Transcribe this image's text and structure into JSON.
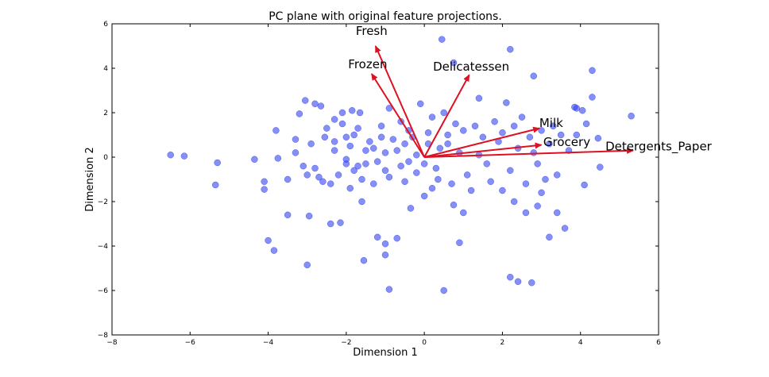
{
  "chart_data": {
    "type": "scatter",
    "title": "PC plane with original feature projections.",
    "xlabel": "Dimension 1",
    "ylabel": "Dimension 2",
    "xlim": [
      -8,
      6
    ],
    "ylim": [
      -8,
      6
    ],
    "xticks": [
      -8,
      -6,
      -4,
      -2,
      0,
      2,
      4,
      6
    ],
    "yticks": [
      -8,
      -6,
      -4,
      -2,
      0,
      2,
      4,
      6
    ],
    "x_tick_labels": [
      "−8",
      "−6",
      "−4",
      "−2",
      "0",
      "2",
      "4",
      "6"
    ],
    "y_tick_labels": [
      "−8",
      "−6",
      "−4",
      "−2",
      "0",
      "2",
      "4",
      "6"
    ],
    "grid": false,
    "point_color": "#3344ee",
    "arrow_color": "#dd1122",
    "points": [
      [
        -6.5,
        0.1
      ],
      [
        -6.15,
        0.05
      ],
      [
        -5.3,
        -0.25
      ],
      [
        -5.35,
        -1.25
      ],
      [
        -4.35,
        -0.1
      ],
      [
        -4.1,
        -1.1
      ],
      [
        -4.1,
        -1.45
      ],
      [
        -4.0,
        -3.75
      ],
      [
        -3.85,
        -4.2
      ],
      [
        -3.8,
        1.2
      ],
      [
        -3.75,
        -0.05
      ],
      [
        -3.5,
        -1.0
      ],
      [
        -3.5,
        -2.6
      ],
      [
        -3.3,
        0.8
      ],
      [
        -3.2,
        1.95
      ],
      [
        -3.05,
        2.55
      ],
      [
        -3.0,
        -0.8
      ],
      [
        -3.0,
        -4.85
      ],
      [
        -2.95,
        -2.65
      ],
      [
        -2.8,
        2.4
      ],
      [
        -2.65,
        2.3
      ],
      [
        -2.55,
        0.9
      ],
      [
        -2.4,
        -3.0
      ],
      [
        -2.3,
        1.7
      ],
      [
        -2.15,
        -2.95
      ],
      [
        -2.1,
        2.0
      ],
      [
        -2.0,
        -0.3
      ],
      [
        -1.85,
        2.1
      ],
      [
        -1.65,
        2.0
      ],
      [
        -1.6,
        -2.0
      ],
      [
        -1.55,
        -4.65
      ],
      [
        -1.2,
        -3.6
      ],
      [
        -1.0,
        -3.9
      ],
      [
        -1.0,
        -4.4
      ],
      [
        -0.9,
        -5.95
      ],
      [
        -0.7,
        -3.65
      ],
      [
        -0.35,
        -2.3
      ],
      [
        0.0,
        -1.75
      ],
      [
        0.35,
        -1.0
      ],
      [
        0.45,
        5.3
      ],
      [
        0.5,
        -6.0
      ],
      [
        0.75,
        4.25
      ],
      [
        0.75,
        -2.15
      ],
      [
        0.9,
        -3.85
      ],
      [
        1.0,
        -2.5
      ],
      [
        1.4,
        2.65
      ],
      [
        2.1,
        2.45
      ],
      [
        2.2,
        4.85
      ],
      [
        2.2,
        -5.4
      ],
      [
        2.4,
        -5.6
      ],
      [
        2.8,
        3.65
      ],
      [
        2.75,
        -5.65
      ],
      [
        3.0,
        -1.6
      ],
      [
        3.2,
        -3.6
      ],
      [
        3.4,
        -2.5
      ],
      [
        3.6,
        -3.2
      ],
      [
        3.85,
        2.25
      ],
      [
        3.9,
        2.2
      ],
      [
        4.05,
        2.1
      ],
      [
        4.1,
        -1.25
      ],
      [
        4.3,
        3.9
      ],
      [
        4.3,
        2.7
      ],
      [
        4.15,
        1.5
      ],
      [
        4.45,
        0.85
      ],
      [
        4.5,
        -0.45
      ],
      [
        5.3,
        1.85
      ],
      [
        2.0,
        -1.5
      ],
      [
        2.3,
        -2.0
      ],
      [
        2.6,
        -2.5
      ],
      [
        2.9,
        -2.2
      ],
      [
        1.8,
        1.6
      ],
      [
        2.5,
        1.8
      ],
      [
        3.0,
        1.2
      ],
      [
        3.5,
        1.0
      ],
      [
        1.5,
        0.9
      ],
      [
        -2.8,
        -0.5
      ],
      [
        -2.6,
        -1.1
      ],
      [
        -2.3,
        0.3
      ],
      [
        -2.0,
        0.9
      ],
      [
        -1.8,
        -0.6
      ],
      [
        -1.5,
        0.3
      ],
      [
        -1.3,
        -1.2
      ],
      [
        -1.1,
        1.4
      ],
      [
        -0.8,
        0.8
      ],
      [
        -0.6,
        -0.4
      ],
      [
        -0.4,
        1.2
      ],
      [
        -0.2,
        0.1
      ],
      [
        0.1,
        0.6
      ],
      [
        0.3,
        -0.5
      ],
      [
        0.6,
        1.0
      ],
      [
        0.9,
        0.2
      ],
      [
        1.1,
        -0.8
      ],
      [
        1.3,
        1.4
      ],
      [
        1.6,
        -0.3
      ],
      [
        1.9,
        0.7
      ],
      [
        -1.9,
        -1.4
      ],
      [
        -1.7,
        1.3
      ],
      [
        -1.2,
        -0.2
      ],
      [
        -0.9,
        2.2
      ],
      [
        -0.5,
        -1.1
      ],
      [
        -0.1,
        2.4
      ],
      [
        0.2,
        1.8
      ],
      [
        0.5,
        2.0
      ],
      [
        0.8,
        1.5
      ],
      [
        1.2,
        -1.5
      ],
      [
        -3.3,
        0.2
      ],
      [
        -3.1,
        -0.4
      ],
      [
        -2.9,
        0.6
      ],
      [
        -2.7,
        -0.9
      ],
      [
        -2.5,
        1.3
      ],
      [
        -2.2,
        -0.8
      ],
      [
        -2.1,
        1.5
      ],
      [
        -1.6,
        -1.0
      ],
      [
        -1.4,
        0.7
      ],
      [
        -1.0,
        -0.6
      ],
      [
        -0.7,
        0.3
      ],
      [
        -0.3,
        0.9
      ],
      [
        0.0,
        -0.3
      ],
      [
        0.4,
        0.4
      ],
      [
        0.7,
        -1.2
      ],
      [
        2.4,
        0.4
      ],
      [
        2.7,
        0.9
      ],
      [
        2.9,
        -0.3
      ],
      [
        3.2,
        0.6
      ],
      [
        3.4,
        -0.8
      ],
      [
        3.7,
        0.3
      ],
      [
        3.9,
        1.0
      ],
      [
        2.2,
        -0.6
      ],
      [
        2.6,
        -1.2
      ],
      [
        3.1,
        -1.0
      ],
      [
        1.7,
        -1.1
      ],
      [
        2.0,
        1.1
      ],
      [
        2.3,
        1.4
      ],
      [
        2.8,
        0.2
      ],
      [
        3.3,
        1.4
      ],
      [
        -2.4,
        -1.2
      ],
      [
        -1.9,
        0.5
      ],
      [
        -1.5,
        -0.3
      ],
      [
        -1.1,
        0.9
      ],
      [
        -0.6,
        1.6
      ],
      [
        -0.2,
        -0.7
      ],
      [
        0.2,
        -1.4
      ],
      [
        0.6,
        0.6
      ],
      [
        1.0,
        1.2
      ],
      [
        1.4,
        0.1
      ],
      [
        -2.0,
        -0.1
      ],
      [
        -1.7,
        -0.4
      ],
      [
        -1.3,
        0.4
      ],
      [
        -0.9,
        -0.9
      ],
      [
        -0.5,
        0.6
      ],
      [
        -1.0,
        0.2
      ],
      [
        -1.8,
        1.0
      ],
      [
        -2.3,
        0.7
      ],
      [
        -0.4,
        -0.2
      ],
      [
        0.1,
        1.1
      ]
    ],
    "arrows": [
      {
        "label": "Fresh",
        "x": -1.25,
        "y": 5.0,
        "label_x": -1.35,
        "label_y": 5.5
      },
      {
        "label": "Frozen",
        "x": -1.35,
        "y": 3.75,
        "label_x": -1.45,
        "label_y": 4.0
      },
      {
        "label": "Delicatessen",
        "x": 1.15,
        "y": 3.7,
        "label_x": 1.2,
        "label_y": 3.9
      },
      {
        "label": "Milk",
        "x": 2.95,
        "y": 1.3,
        "label_x": 3.25,
        "label_y": 1.35
      },
      {
        "label": "Grocery",
        "x": 3.0,
        "y": 0.55,
        "label_x": 3.65,
        "label_y": 0.5
      },
      {
        "label": "Detergents_Paper",
        "x": 5.35,
        "y": 0.3,
        "label_x": 6.0,
        "label_y": 0.3
      }
    ]
  }
}
